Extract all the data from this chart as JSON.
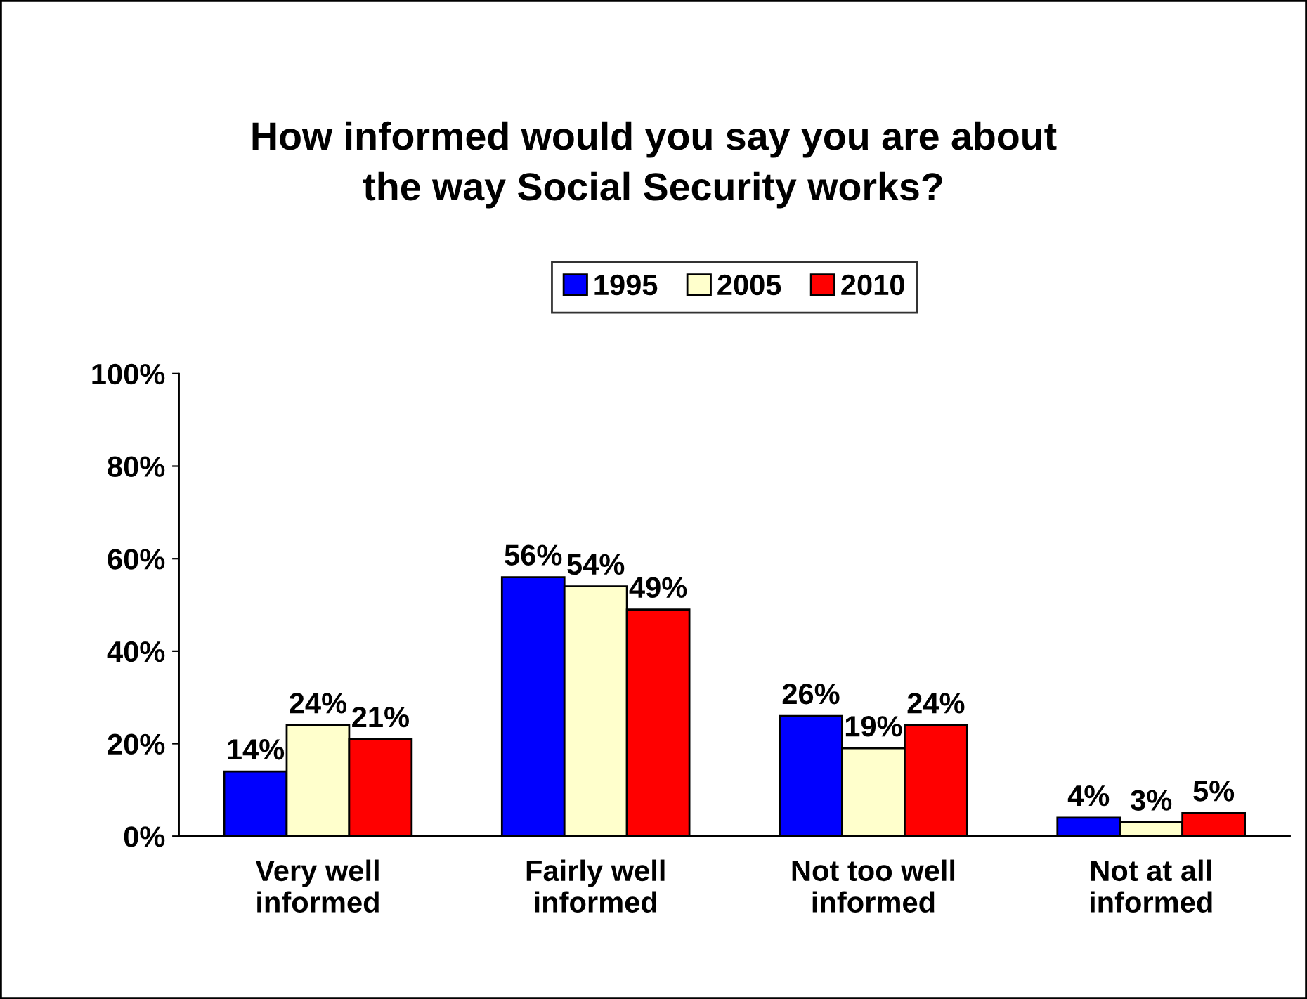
{
  "chart_data": {
    "type": "bar",
    "title": "How informed would you say you are about\nthe way Social Security works?",
    "categories": [
      "Very well\ninformed",
      "Fairly well\ninformed",
      "Not too well\ninformed",
      "Not at all\ninformed"
    ],
    "series": [
      {
        "name": "1995",
        "color": "#0000ff",
        "values": [
          14,
          56,
          26,
          4
        ],
        "value_labels": [
          "14%",
          "56%",
          "26%",
          "4%"
        ]
      },
      {
        "name": "2005",
        "color": "#ffffcc",
        "values": [
          24,
          54,
          19,
          3
        ],
        "value_labels": [
          "24%",
          "54%",
          "19%",
          "3%"
        ]
      },
      {
        "name": "2010",
        "color": "#ff0000",
        "values": [
          21,
          49,
          24,
          5
        ],
        "value_labels": [
          "21%",
          "49%",
          "24%",
          "5%"
        ]
      }
    ],
    "ylim": [
      0,
      100
    ],
    "yticks": [
      {
        "value": 0,
        "label": "0%"
      },
      {
        "value": 20,
        "label": "20%"
      },
      {
        "value": 40,
        "label": "40%"
      },
      {
        "value": 60,
        "label": "60%"
      },
      {
        "value": 80,
        "label": "80%"
      },
      {
        "value": 100,
        "label": "100%"
      }
    ],
    "grid": false,
    "legend": "top"
  }
}
